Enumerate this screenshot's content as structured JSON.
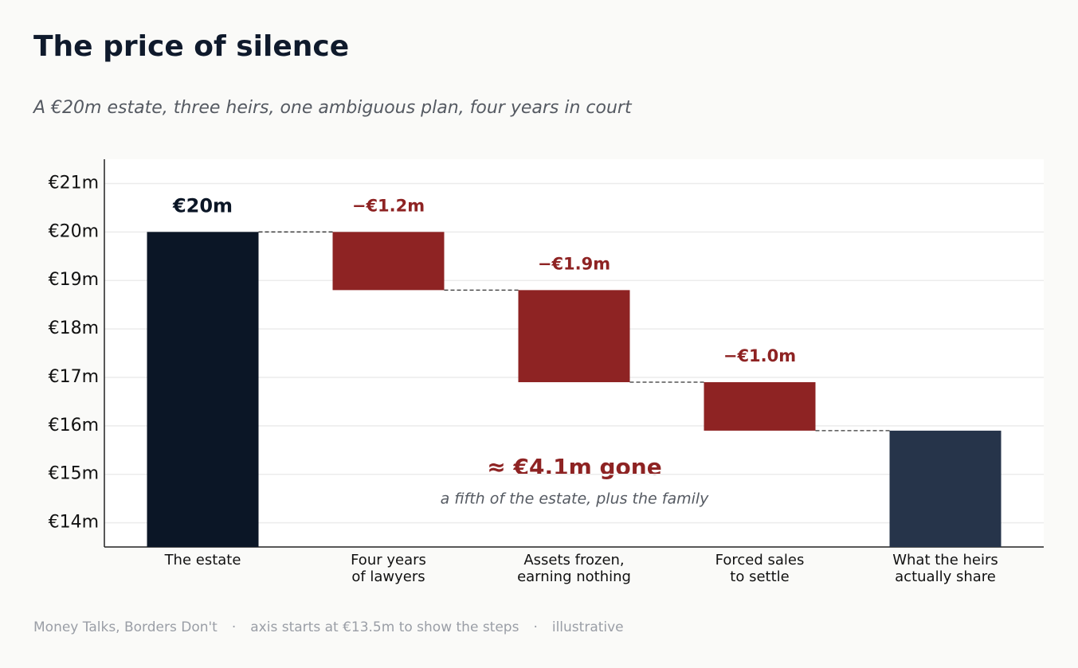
{
  "chart_data": {
    "type": "waterfall",
    "title": "The price of silence",
    "subtitle": "A €20m estate, three heirs, one ambiguous plan, four years in court",
    "categories": [
      [
        "The estate"
      ],
      [
        "Four years",
        "of lawyers"
      ],
      [
        "Assets frozen,",
        "earning nothing"
      ],
      [
        "Forced sales",
        "to settle"
      ],
      [
        "What the heirs",
        "actually share"
      ]
    ],
    "values": [
      20,
      -1.2,
      -1.9,
      -1.0,
      15.9
    ],
    "value_labels": [
      "€20m",
      "−€1.2m",
      "−€1.9m",
      "−€1.0m",
      null
    ],
    "kinds": [
      "start",
      "delta",
      "delta",
      "delta",
      "total"
    ],
    "colors": {
      "start": "#0b1626",
      "delta": "#8e2323",
      "total": "#26344a"
    },
    "ylim": [
      13.5,
      21.5
    ],
    "yticks": [
      {
        "value": 14,
        "label": "€14m"
      },
      {
        "value": 15,
        "label": "€15m"
      },
      {
        "value": 16,
        "label": "€16m"
      },
      {
        "value": 17,
        "label": "€17m"
      },
      {
        "value": 18,
        "label": "€18m"
      },
      {
        "value": 19,
        "label": "€19m"
      },
      {
        "value": 20,
        "label": "€20m"
      },
      {
        "value": 21,
        "label": "€21m"
      }
    ],
    "grid": true,
    "annotation": "≈ €4.1m gone",
    "annotation_note": "a fifth of the estate, plus the family",
    "footer": [
      "Money Talks, Borders Don't",
      "axis starts at €13.5m to show the steps",
      "illustrative"
    ],
    "footer_separator": "·"
  }
}
